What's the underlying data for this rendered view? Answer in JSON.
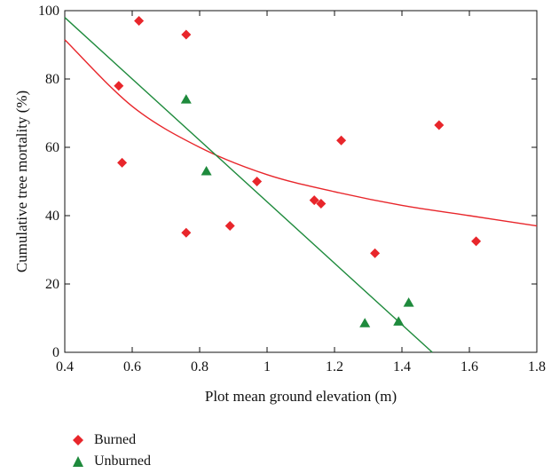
{
  "chart_data": {
    "type": "scatter",
    "title": "",
    "xlabel": "Plot mean ground elevation (m)",
    "ylabel": "Cumulative tree mortality (%)",
    "xlim": [
      0.4,
      1.8
    ],
    "ylim": [
      0,
      100
    ],
    "x_ticks": [
      0.4,
      0.6,
      0.8,
      1,
      1.2,
      1.4,
      1.6,
      1.8
    ],
    "x_tick_labels": [
      "0.4",
      "0.6",
      "0.8",
      "1",
      "1.2",
      "1.4",
      "1.6",
      "1.8"
    ],
    "y_ticks": [
      0,
      20,
      40,
      60,
      80,
      100
    ],
    "y_tick_labels": [
      "0",
      "20",
      "40",
      "60",
      "80",
      "100"
    ],
    "grid": false,
    "legend_position": "bottom-left-outside",
    "series": [
      {
        "name": "Burned",
        "marker": "diamond",
        "color": "#e8262b",
        "points": [
          [
            0.56,
            78
          ],
          [
            0.57,
            55.5
          ],
          [
            0.62,
            97
          ],
          [
            0.76,
            93
          ],
          [
            0.76,
            35
          ],
          [
            0.89,
            37
          ],
          [
            0.97,
            50
          ],
          [
            1.14,
            44.5
          ],
          [
            1.16,
            43.5
          ],
          [
            1.22,
            62
          ],
          [
            1.32,
            29
          ],
          [
            1.51,
            66.5
          ],
          [
            1.62,
            32.5
          ]
        ]
      },
      {
        "name": "Unburned",
        "marker": "triangle",
        "color": "#1e8a3c",
        "points": [
          [
            0.76,
            74
          ],
          [
            0.82,
            53
          ],
          [
            1.29,
            8.5
          ],
          [
            1.39,
            9
          ],
          [
            1.42,
            14.5
          ]
        ]
      }
    ],
    "fits": [
      {
        "series": "Burned",
        "kind": "curve",
        "color": "#e8262b",
        "points": [
          [
            0.4,
            91.5
          ],
          [
            0.6,
            72
          ],
          [
            0.8,
            60
          ],
          [
            1.0,
            52
          ],
          [
            1.2,
            47
          ],
          [
            1.4,
            43
          ],
          [
            1.6,
            40
          ],
          [
            1.8,
            37
          ]
        ]
      },
      {
        "series": "Unburned",
        "kind": "linear",
        "color": "#1e8a3c",
        "points": [
          [
            0.4,
            98
          ],
          [
            1.49,
            0
          ]
        ]
      }
    ]
  }
}
